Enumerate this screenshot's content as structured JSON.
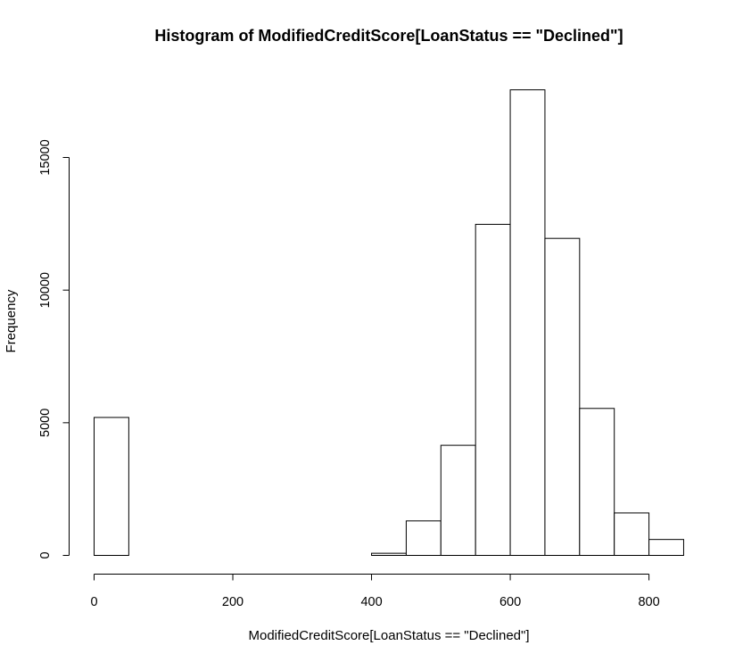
{
  "chart_data": {
    "type": "bar",
    "title": "Histogram of ModifiedCreditScore[LoanStatus == \"Declined\"]",
    "xlabel": "ModifiedCreditScore[LoanStatus == \"Declined\"]",
    "ylabel": "Frequency",
    "xlim": [
      0,
      850
    ],
    "ylim": [
      0,
      17550
    ],
    "bin_width": 50,
    "bins": [
      {
        "start": 0,
        "end": 50,
        "count": 5200
      },
      {
        "start": 50,
        "end": 100,
        "count": 0
      },
      {
        "start": 100,
        "end": 150,
        "count": 0
      },
      {
        "start": 150,
        "end": 200,
        "count": 0
      },
      {
        "start": 200,
        "end": 250,
        "count": 0
      },
      {
        "start": 250,
        "end": 300,
        "count": 0
      },
      {
        "start": 300,
        "end": 350,
        "count": 0
      },
      {
        "start": 350,
        "end": 400,
        "count": 0
      },
      {
        "start": 400,
        "end": 450,
        "count": 80
      },
      {
        "start": 450,
        "end": 500,
        "count": 1300
      },
      {
        "start": 500,
        "end": 550,
        "count": 4150
      },
      {
        "start": 550,
        "end": 600,
        "count": 12480
      },
      {
        "start": 600,
        "end": 650,
        "count": 17550
      },
      {
        "start": 650,
        "end": 700,
        "count": 11950
      },
      {
        "start": 700,
        "end": 750,
        "count": 5540
      },
      {
        "start": 750,
        "end": 800,
        "count": 1600
      },
      {
        "start": 800,
        "end": 850,
        "count": 600
      }
    ],
    "x_ticks": [
      {
        "value": 0,
        "label": "0"
      },
      {
        "value": 200,
        "label": "200"
      },
      {
        "value": 400,
        "label": "400"
      },
      {
        "value": 600,
        "label": "600"
      },
      {
        "value": 800,
        "label": "800"
      }
    ],
    "y_ticks": [
      {
        "value": 0,
        "label": "0"
      },
      {
        "value": 5000,
        "label": "5000"
      },
      {
        "value": 10000,
        "label": "10000"
      },
      {
        "value": 15000,
        "label": "15000"
      }
    ],
    "grid": false,
    "legend": "none"
  }
}
